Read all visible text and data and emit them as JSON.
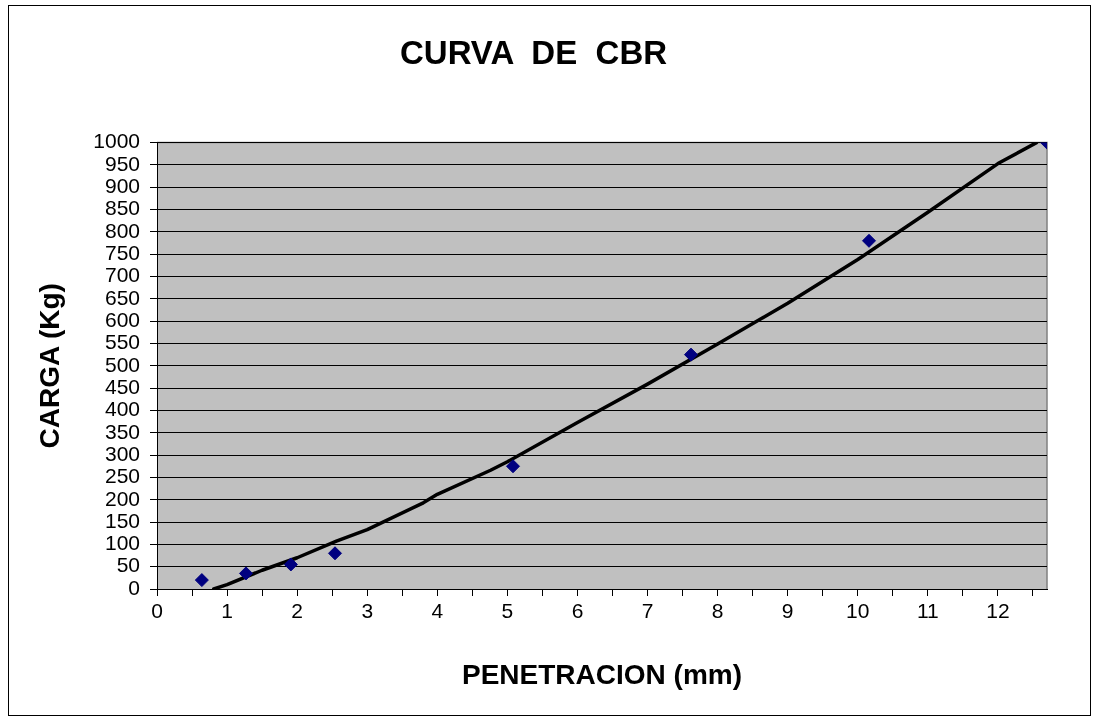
{
  "chart_data": {
    "type": "scatter",
    "title": "CURVA  DE  CBR",
    "xlabel": "PENETRACION (mm)",
    "ylabel": "CARGA (Kg)",
    "xlim": [
      0,
      12.7
    ],
    "xticks": [
      0,
      {
        "value": 0.5,
        "label": null
      },
      1,
      {
        "value": 1.5,
        "label": null
      },
      2,
      {
        "value": 2.5,
        "label": null
      },
      3,
      {
        "value": 3.5,
        "label": null
      },
      4,
      {
        "value": 4.5,
        "label": null
      },
      5,
      {
        "value": 5.5,
        "label": null
      },
      6,
      {
        "value": 6.5,
        "label": null
      },
      7,
      {
        "value": 7.5,
        "label": null
      },
      8,
      {
        "value": 8.5,
        "label": null
      },
      9,
      {
        "value": 9.5,
        "label": null
      },
      10,
      {
        "value": 10.5,
        "label": null
      },
      11,
      {
        "value": 11.5,
        "label": null
      },
      12,
      {
        "value": 12.5,
        "label": null
      }
    ],
    "ylim": [
      0,
      1000
    ],
    "yticks": [
      0,
      50,
      100,
      150,
      200,
      250,
      300,
      350,
      400,
      450,
      500,
      550,
      600,
      650,
      700,
      750,
      800,
      850,
      900,
      950,
      1000
    ],
    "grid": "y",
    "legend": false,
    "series": [
      {
        "color": "#000080",
        "marker": "diamond",
        "x": [
          0.64,
          1.27,
          1.91,
          2.54,
          5.08,
          7.62,
          10.16,
          12.7
        ],
        "values": [
          20,
          35,
          55,
          80,
          275,
          525,
          780,
          1000
        ]
      },
      {
        "type": "line",
        "color": "#000000",
        "marker": "none",
        "x": [
          0.81,
          1.0,
          1.5,
          2.0,
          2.56,
          3.0,
          3.8,
          4.0,
          4.76,
          5.0,
          6.0,
          7.0,
          8.0,
          9.0,
          10.0,
          11.0,
          12.0,
          12.55
        ],
        "values": [
          0,
          10,
          42,
          70,
          107,
          133,
          193,
          212,
          266,
          285,
          373,
          459,
          549,
          640,
          738,
          844,
          953,
          1000
        ]
      }
    ]
  }
}
